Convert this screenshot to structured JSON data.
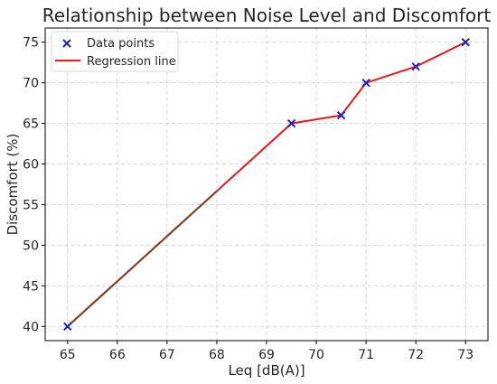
{
  "chart_data": {
    "type": "scatter",
    "title": "Relationship between Noise Level and Discomfort",
    "xlabel": "Leq [dB(A)]",
    "ylabel": "Discomfort (%)",
    "xlim": [
      64.55,
      73.45
    ],
    "ylim": [
      38.25,
      76.75
    ],
    "x_ticks": [
      65,
      66,
      67,
      68,
      69,
      70,
      71,
      72,
      73
    ],
    "y_ticks": [
      40,
      45,
      50,
      55,
      60,
      65,
      70,
      75
    ],
    "grid": true,
    "legend_position": "top-left",
    "series": [
      {
        "name": "Data points",
        "type": "scatter",
        "marker": "x",
        "color": "#1f1fbf",
        "points": [
          {
            "x": 65,
            "y": 40
          },
          {
            "x": 69.5,
            "y": 65
          },
          {
            "x": 70.5,
            "y": 66
          },
          {
            "x": 71,
            "y": 70
          },
          {
            "x": 72,
            "y": 72
          },
          {
            "x": 73,
            "y": 75
          }
        ]
      },
      {
        "name": "Regression line",
        "type": "line",
        "color": "#e8191a",
        "points": [
          {
            "x": 65,
            "y": 40
          },
          {
            "x": 69.5,
            "y": 65
          },
          {
            "x": 70.5,
            "y": 66
          },
          {
            "x": 71,
            "y": 70
          },
          {
            "x": 72,
            "y": 72
          },
          {
            "x": 73,
            "y": 75
          }
        ]
      }
    ],
    "overlay_segment": {
      "color": "#7f3f1f",
      "from_x": 65,
      "to_x": 68
    }
  }
}
